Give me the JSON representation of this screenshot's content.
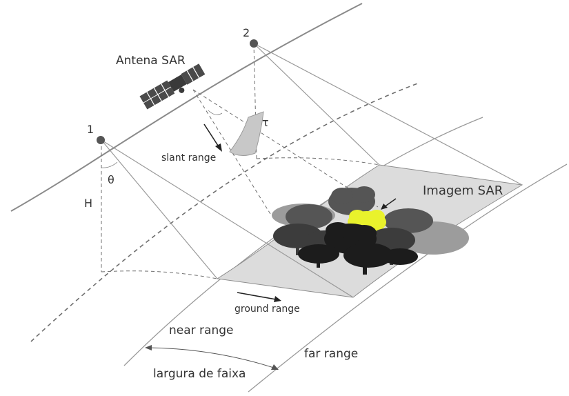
{
  "labels": {
    "position_1": "1",
    "position_2": "2",
    "antenna": "Antena SAR",
    "slant_range": "slant range",
    "tau": "τ",
    "theta": "θ",
    "height": "H",
    "image": "Imagem SAR",
    "ground_range": "ground range",
    "near_range": "near range",
    "far_range": "far range",
    "swath_width": "largura de faixa"
  },
  "colors": {
    "line": "#9a9a9a",
    "dashed_line": "#6f6f6f",
    "orbit": "#8a8a8a",
    "footprint_fill": "#dcdcdc",
    "footprint_stroke": "#8c8c8c",
    "shadow": "#9c9c9c",
    "shadow_dark": "#7a7a7a",
    "tree_dark": "#1c1c1c",
    "tree_mid": "#3c3c3c",
    "tree_light": "#555555",
    "tree_highlight": "#e9f22c",
    "satellite_body": "#4a4a4a",
    "text": "#333333"
  },
  "icons": [
    "satellite-icon",
    "tree-icon"
  ]
}
